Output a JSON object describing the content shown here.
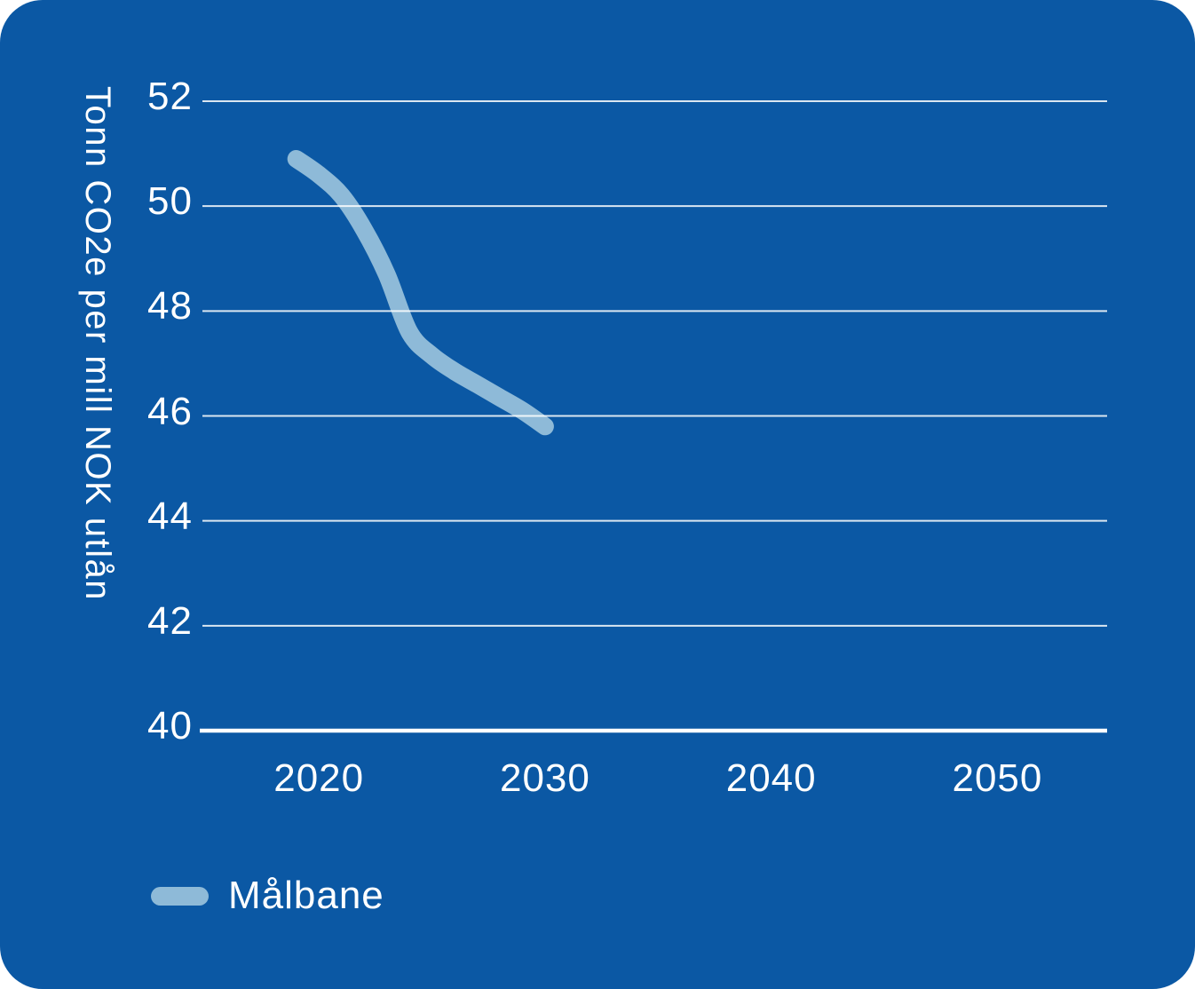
{
  "colors": {
    "background": "#0B58A4",
    "text": "#FFFFFF",
    "grid": "#FFFFFF",
    "series": "#8EBAD8"
  },
  "legend": {
    "items": [
      {
        "label": "Målbane",
        "color": "#8EBAD8"
      }
    ]
  },
  "chart_data": {
    "type": "line",
    "title": "",
    "xlabel": "",
    "ylabel": "Tonn CO2e per mill NOK utlån",
    "x_ticks": [
      2020,
      2030,
      2040,
      2050
    ],
    "y_ticks": [
      52,
      50,
      48,
      46,
      44,
      42,
      40
    ],
    "xlim": [
      2014.85,
      2054.85
    ],
    "ylim": [
      40,
      52
    ],
    "baseline": 40,
    "grid": true,
    "legend_position": "bottom-left",
    "series": [
      {
        "name": "Målbane",
        "points": [
          [
            2019,
            50.9
          ],
          [
            2020,
            50.6
          ],
          [
            2021,
            50.2
          ],
          [
            2022,
            49.55
          ],
          [
            2023,
            48.7
          ],
          [
            2024,
            47.6
          ],
          [
            2025,
            47.15
          ],
          [
            2026,
            46.85
          ],
          [
            2027,
            46.6
          ],
          [
            2028,
            46.35
          ],
          [
            2029,
            46.1
          ],
          [
            2030,
            45.8
          ]
        ]
      }
    ]
  }
}
